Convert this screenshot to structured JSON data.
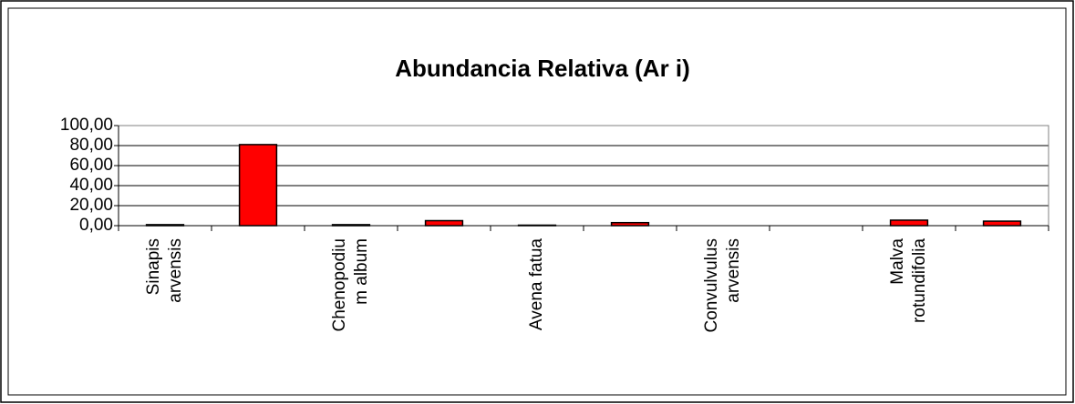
{
  "chart_data": {
    "type": "bar",
    "title": "Abundancia Relativa (Ar i)",
    "categories": [
      "Sinapis arvensis",
      null,
      "Chenopodium album",
      null,
      "Avena fatua",
      null,
      "Convulvulus arvensis",
      null,
      "Malva rotundifolia",
      null
    ],
    "values": [
      1,
      81,
      1,
      5,
      0.5,
      3,
      0,
      0,
      5.5,
      4.5
    ],
    "color": "#ff0000",
    "ylim": [
      0,
      100
    ],
    "yticks": [
      {
        "value": 0,
        "label": "0,00"
      },
      {
        "value": 20,
        "label": "20,00"
      },
      {
        "value": 40,
        "label": "40,00"
      },
      {
        "value": 60,
        "label": "60,00"
      },
      {
        "value": 80,
        "label": "80,00"
      },
      {
        "value": 100,
        "label": "100,00"
      }
    ],
    "grid": true
  }
}
